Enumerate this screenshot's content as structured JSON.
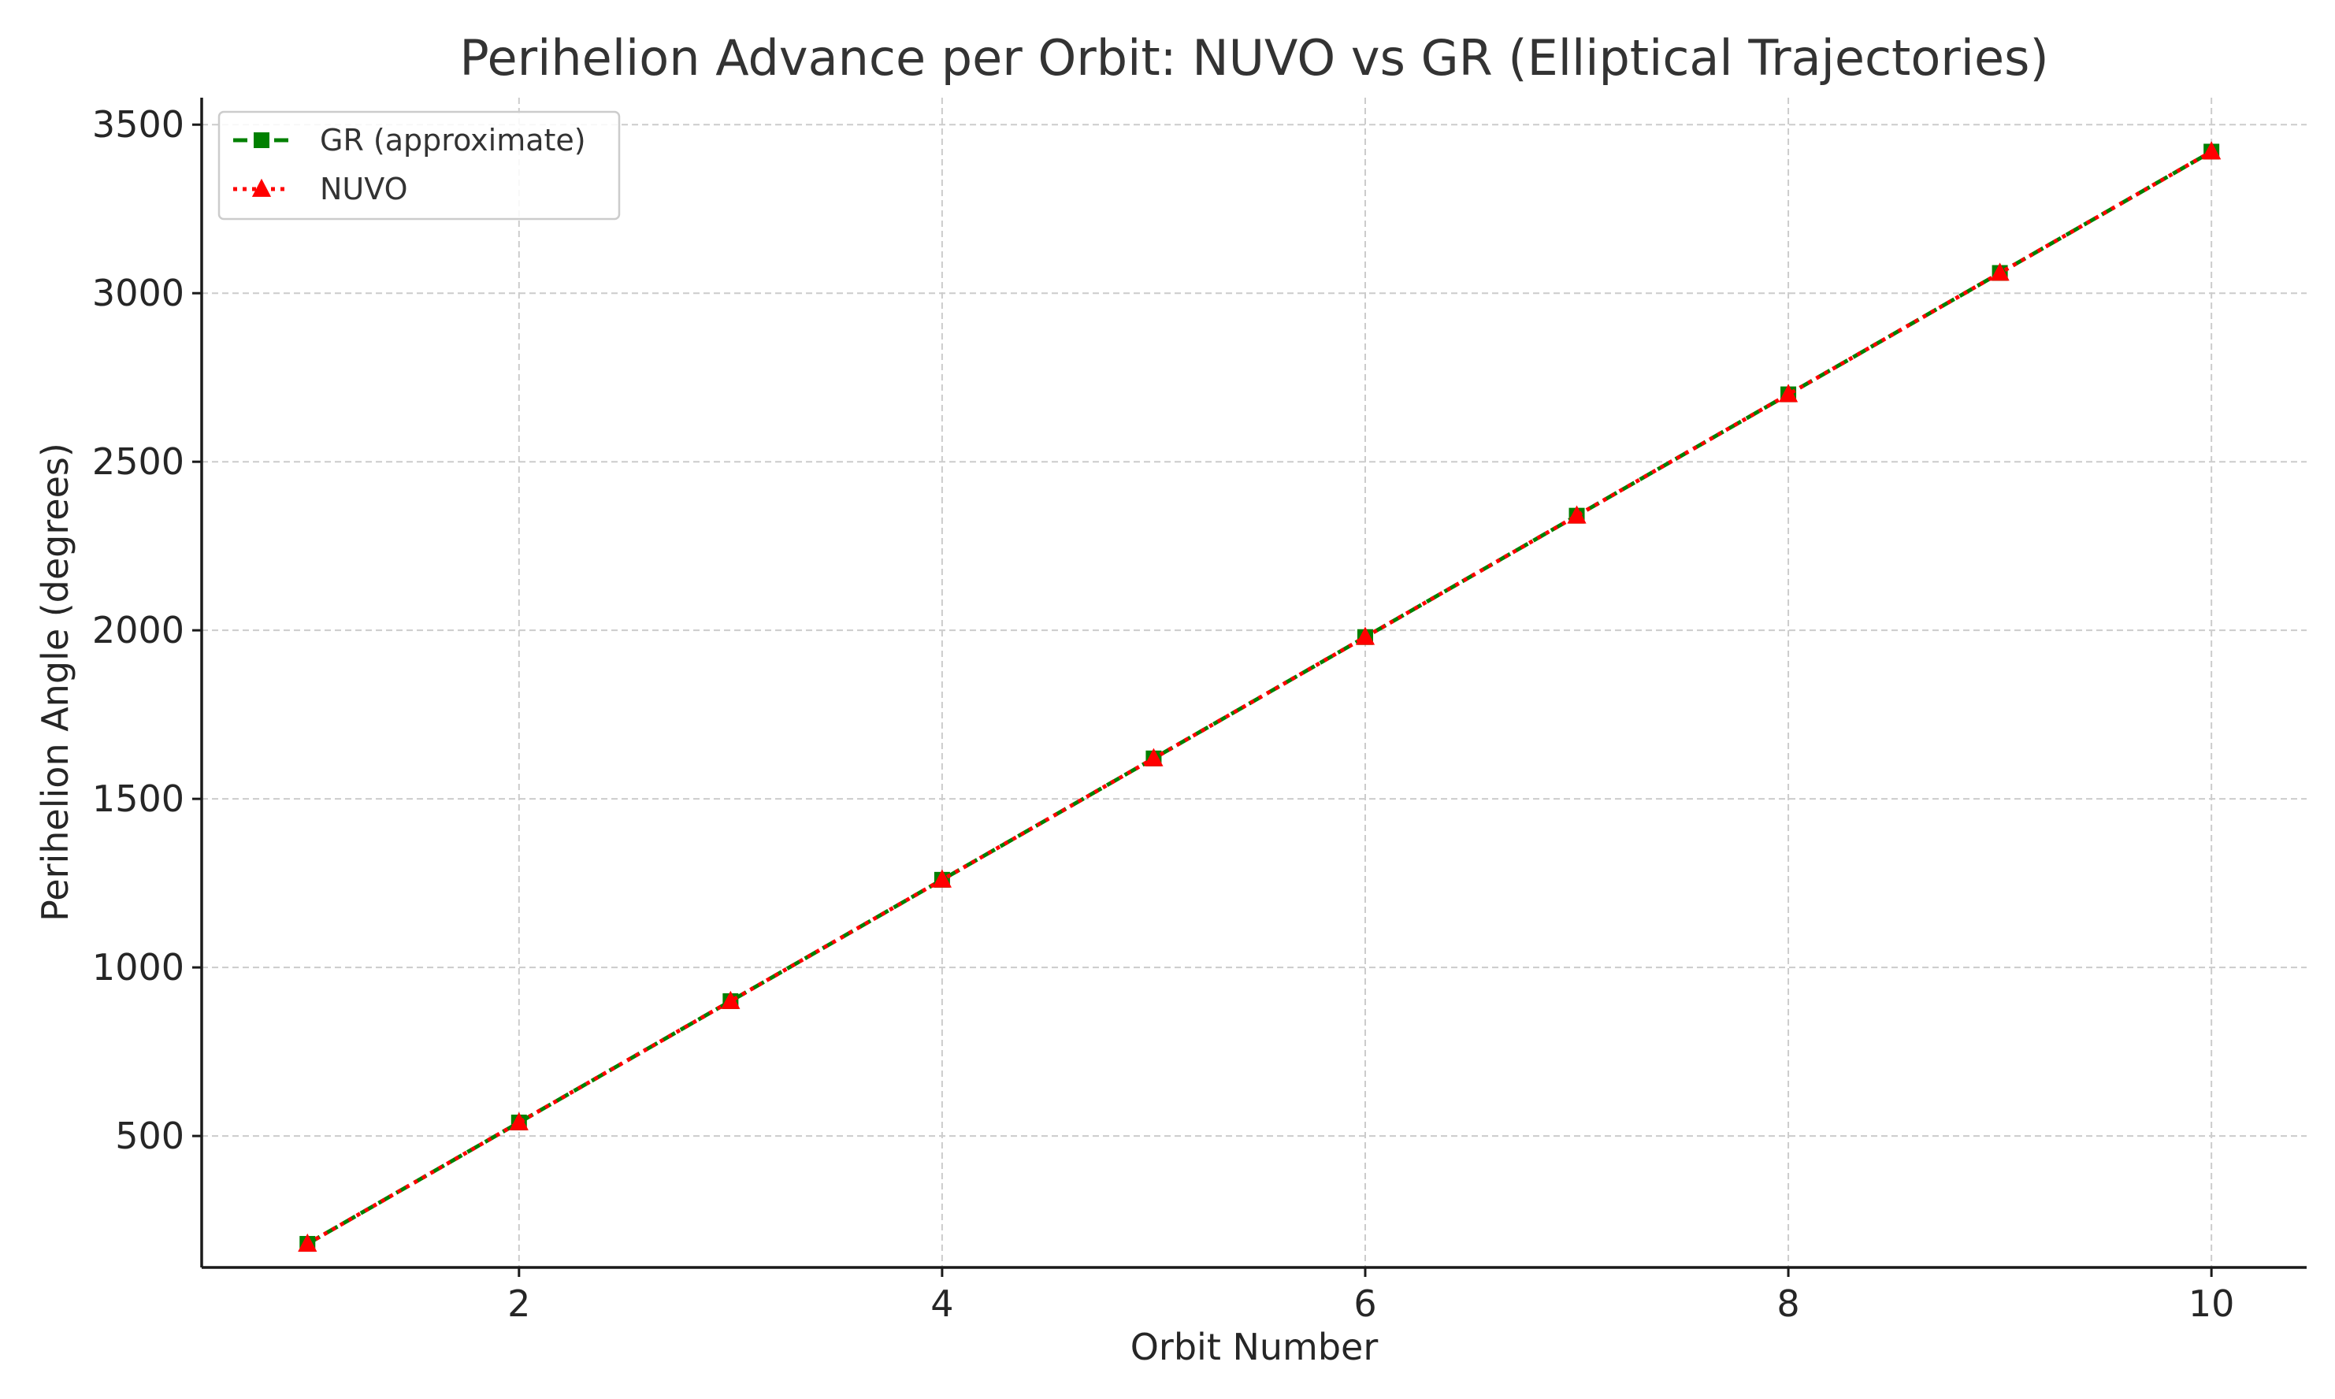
{
  "chart_data": {
    "type": "line",
    "title": "Perihelion Advance per Orbit: NUVO vs GR (Elliptical Trajectories)",
    "xlabel": "Orbit Number",
    "ylabel": "Perihelion Angle (degrees)",
    "xlim": [
      0.5,
      10.45
    ],
    "ylim": [
      110,
      3580
    ],
    "xticks": [
      2,
      4,
      6,
      8,
      10
    ],
    "yticks": [
      500,
      1000,
      1500,
      2000,
      2500,
      3000,
      3500
    ],
    "grid": true,
    "legend_position": "upper-left",
    "x": [
      1,
      2,
      3,
      4,
      5,
      6,
      7,
      8,
      9,
      10
    ],
    "series": [
      {
        "name": "GR (approximate)",
        "color": "#008000",
        "line_style": "dashed",
        "marker": "square",
        "values": [
          180,
          540,
          900,
          1260,
          1620,
          1980,
          2340,
          2700,
          3060,
          3420
        ]
      },
      {
        "name": "NUVO",
        "color": "#ff0000",
        "line_style": "dotted",
        "marker": "triangle-up",
        "values": [
          180,
          540,
          900,
          1260,
          1620,
          1980,
          2340,
          2700,
          3060,
          3420
        ]
      }
    ]
  }
}
